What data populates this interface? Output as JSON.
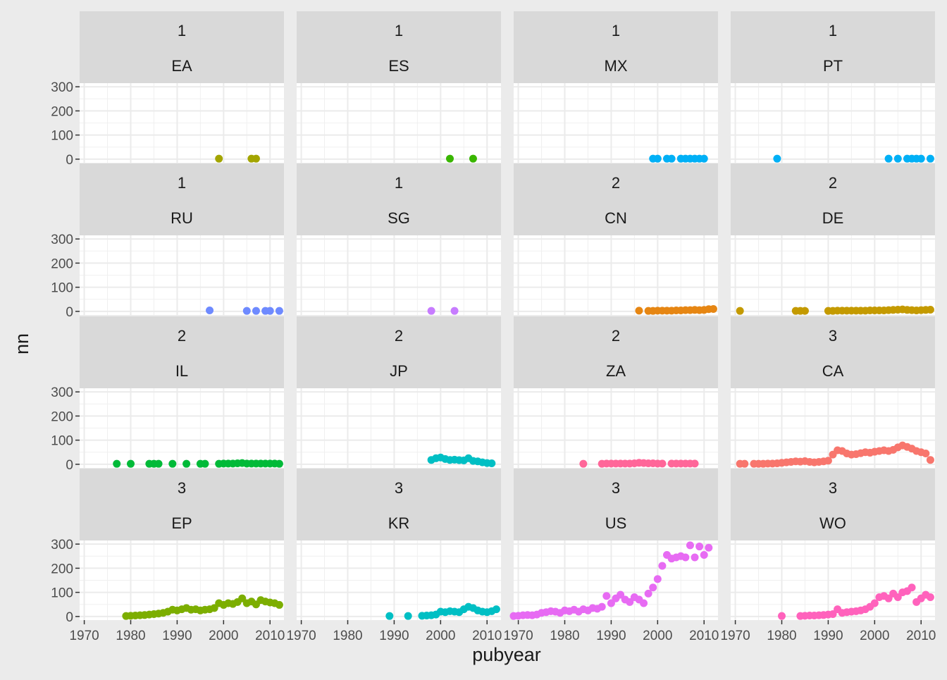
{
  "chart_data": {
    "type": "scatter",
    "xlabel": "pubyear",
    "ylabel": "nn",
    "xlim": [
      1969,
      2013
    ],
    "ylim": [
      -15,
      315
    ],
    "x_ticks": [
      1970,
      1980,
      1990,
      2000,
      2010
    ],
    "y_ticks": [
      0,
      100,
      200,
      300
    ],
    "grid": true,
    "legend": "none",
    "panels": [
      {
        "group": "1",
        "code": "EA",
        "color": "#A3A500",
        "points": [
          [
            1999,
            2
          ],
          [
            2006,
            2
          ],
          [
            2007,
            2
          ]
        ]
      },
      {
        "group": "1",
        "code": "ES",
        "color": "#39B600",
        "points": [
          [
            2002,
            2
          ],
          [
            2007,
            2
          ]
        ]
      },
      {
        "group": "1",
        "code": "MX",
        "color": "#00B0F6",
        "points": [
          [
            1999,
            2
          ],
          [
            2000,
            2
          ],
          [
            2002,
            2
          ],
          [
            2003,
            2
          ],
          [
            2005,
            2
          ],
          [
            2006,
            2
          ],
          [
            2007,
            2
          ],
          [
            2008,
            2
          ],
          [
            2009,
            2
          ],
          [
            2010,
            2
          ]
        ]
      },
      {
        "group": "1",
        "code": "PT",
        "color": "#00B0F6",
        "points": [
          [
            1979,
            2
          ],
          [
            2003,
            2
          ],
          [
            2005,
            2
          ],
          [
            2007,
            2
          ],
          [
            2008,
            2
          ],
          [
            2009,
            2
          ],
          [
            2010,
            2
          ],
          [
            2012,
            2
          ]
        ]
      },
      {
        "group": "1",
        "code": "RU",
        "color": "#6E8AFF",
        "points": [
          [
            1997,
            4
          ],
          [
            2005,
            2
          ],
          [
            2007,
            2
          ],
          [
            2009,
            2
          ],
          [
            2010,
            2
          ],
          [
            2012,
            2
          ]
        ]
      },
      {
        "group": "1",
        "code": "SG",
        "color": "#C77CFF",
        "points": [
          [
            1998,
            2
          ],
          [
            2003,
            2
          ]
        ]
      },
      {
        "group": "2",
        "code": "CN",
        "color": "#E68613",
        "points": [
          [
            1996,
            3
          ],
          [
            1998,
            2
          ],
          [
            1999,
            2
          ],
          [
            2000,
            3
          ],
          [
            2001,
            3
          ],
          [
            2002,
            3
          ],
          [
            2003,
            3
          ],
          [
            2004,
            4
          ],
          [
            2005,
            4
          ],
          [
            2006,
            5
          ],
          [
            2007,
            5
          ],
          [
            2008,
            6
          ],
          [
            2009,
            5
          ],
          [
            2010,
            6
          ],
          [
            2011,
            9
          ],
          [
            2012,
            10
          ]
        ]
      },
      {
        "group": "2",
        "code": "DE",
        "color": "#C49A00",
        "points": [
          [
            1971,
            2
          ],
          [
            1983,
            2
          ],
          [
            1984,
            2
          ],
          [
            1985,
            2
          ],
          [
            1990,
            2
          ],
          [
            1991,
            2
          ],
          [
            1992,
            3
          ],
          [
            1993,
            3
          ],
          [
            1994,
            3
          ],
          [
            1995,
            3
          ],
          [
            1996,
            3
          ],
          [
            1997,
            3
          ],
          [
            1998,
            3
          ],
          [
            1999,
            4
          ],
          [
            2000,
            4
          ],
          [
            2001,
            4
          ],
          [
            2002,
            4
          ],
          [
            2003,
            5
          ],
          [
            2004,
            6
          ],
          [
            2005,
            7
          ],
          [
            2006,
            8
          ],
          [
            2007,
            6
          ],
          [
            2008,
            5
          ],
          [
            2009,
            4
          ],
          [
            2010,
            5
          ],
          [
            2011,
            6
          ],
          [
            2012,
            7
          ]
        ]
      },
      {
        "group": "2",
        "code": "IL",
        "color": "#00BA38",
        "points": [
          [
            1977,
            2
          ],
          [
            1980,
            2
          ],
          [
            1984,
            2
          ],
          [
            1985,
            2
          ],
          [
            1986,
            2
          ],
          [
            1989,
            2
          ],
          [
            1992,
            2
          ],
          [
            1995,
            2
          ],
          [
            1996,
            2
          ],
          [
            1999,
            2
          ],
          [
            2000,
            3
          ],
          [
            2001,
            3
          ],
          [
            2002,
            3
          ],
          [
            2003,
            4
          ],
          [
            2004,
            5
          ],
          [
            2005,
            3
          ],
          [
            2006,
            3
          ],
          [
            2007,
            3
          ],
          [
            2008,
            3
          ],
          [
            2009,
            3
          ],
          [
            2010,
            3
          ],
          [
            2011,
            3
          ],
          [
            2012,
            2
          ]
        ]
      },
      {
        "group": "2",
        "code": "JP",
        "color": "#00BFC4",
        "points": [
          [
            1998,
            18
          ],
          [
            1999,
            25
          ],
          [
            2000,
            28
          ],
          [
            2001,
            22
          ],
          [
            2002,
            18
          ],
          [
            2003,
            19
          ],
          [
            2004,
            17
          ],
          [
            2005,
            16
          ],
          [
            2006,
            25
          ],
          [
            2007,
            14
          ],
          [
            2008,
            12
          ],
          [
            2009,
            8
          ],
          [
            2010,
            5
          ],
          [
            2011,
            4
          ]
        ]
      },
      {
        "group": "2",
        "code": "ZA",
        "color": "#FF6699",
        "points": [
          [
            1984,
            2
          ],
          [
            1988,
            2
          ],
          [
            1989,
            3
          ],
          [
            1990,
            3
          ],
          [
            1991,
            3
          ],
          [
            1992,
            3
          ],
          [
            1993,
            3
          ],
          [
            1994,
            3
          ],
          [
            1995,
            4
          ],
          [
            1996,
            6
          ],
          [
            1997,
            5
          ],
          [
            1998,
            4
          ],
          [
            1999,
            4
          ],
          [
            2000,
            3
          ],
          [
            2001,
            3
          ],
          [
            2003,
            3
          ],
          [
            2004,
            3
          ],
          [
            2005,
            3
          ],
          [
            2006,
            3
          ],
          [
            2007,
            3
          ],
          [
            2008,
            3
          ]
        ]
      },
      {
        "group": "3",
        "code": "CA",
        "color": "#F8766D",
        "points": [
          [
            1971,
            2
          ],
          [
            1972,
            2
          ],
          [
            1974,
            2
          ],
          [
            1975,
            2
          ],
          [
            1976,
            2
          ],
          [
            1977,
            3
          ],
          [
            1978,
            3
          ],
          [
            1979,
            4
          ],
          [
            1980,
            6
          ],
          [
            1981,
            8
          ],
          [
            1982,
            10
          ],
          [
            1983,
            12
          ],
          [
            1984,
            11
          ],
          [
            1985,
            13
          ],
          [
            1986,
            10
          ],
          [
            1987,
            8
          ],
          [
            1988,
            10
          ],
          [
            1989,
            12
          ],
          [
            1990,
            15
          ],
          [
            1991,
            40
          ],
          [
            1992,
            58
          ],
          [
            1993,
            55
          ],
          [
            1994,
            45
          ],
          [
            1995,
            40
          ],
          [
            1996,
            42
          ],
          [
            1997,
            46
          ],
          [
            1998,
            50
          ],
          [
            1999,
            48
          ],
          [
            2000,
            52
          ],
          [
            2001,
            55
          ],
          [
            2002,
            58
          ],
          [
            2003,
            55
          ],
          [
            2004,
            60
          ],
          [
            2005,
            70
          ],
          [
            2006,
            78
          ],
          [
            2007,
            72
          ],
          [
            2008,
            65
          ],
          [
            2009,
            55
          ],
          [
            2010,
            50
          ],
          [
            2011,
            45
          ],
          [
            2012,
            18
          ]
        ]
      },
      {
        "group": "3",
        "code": "EP",
        "color": "#7CAE00",
        "points": [
          [
            1979,
            2
          ],
          [
            1980,
            3
          ],
          [
            1981,
            4
          ],
          [
            1982,
            5
          ],
          [
            1983,
            6
          ],
          [
            1984,
            8
          ],
          [
            1985,
            10
          ],
          [
            1986,
            12
          ],
          [
            1987,
            15
          ],
          [
            1988,
            20
          ],
          [
            1989,
            28
          ],
          [
            1990,
            25
          ],
          [
            1991,
            30
          ],
          [
            1992,
            35
          ],
          [
            1993,
            28
          ],
          [
            1994,
            30
          ],
          [
            1995,
            25
          ],
          [
            1996,
            28
          ],
          [
            1997,
            30
          ],
          [
            1998,
            35
          ],
          [
            1999,
            55
          ],
          [
            2000,
            48
          ],
          [
            2001,
            55
          ],
          [
            2002,
            52
          ],
          [
            2003,
            60
          ],
          [
            2004,
            75
          ],
          [
            2005,
            55
          ],
          [
            2006,
            62
          ],
          [
            2007,
            50
          ],
          [
            2008,
            68
          ],
          [
            2009,
            62
          ],
          [
            2010,
            58
          ],
          [
            2011,
            55
          ],
          [
            2012,
            48
          ]
        ]
      },
      {
        "group": "3",
        "code": "KR",
        "color": "#00BFC4",
        "points": [
          [
            1989,
            2
          ],
          [
            1993,
            2
          ],
          [
            1996,
            3
          ],
          [
            1997,
            4
          ],
          [
            1998,
            5
          ],
          [
            1999,
            8
          ],
          [
            2000,
            20
          ],
          [
            2001,
            18
          ],
          [
            2002,
            22
          ],
          [
            2003,
            20
          ],
          [
            2004,
            18
          ],
          [
            2005,
            30
          ],
          [
            2006,
            40
          ],
          [
            2007,
            35
          ],
          [
            2008,
            25
          ],
          [
            2009,
            20
          ],
          [
            2010,
            18
          ],
          [
            2011,
            22
          ],
          [
            2012,
            30
          ]
        ]
      },
      {
        "group": "3",
        "code": "US",
        "color": "#E76BF3",
        "points": [
          [
            1969,
            2
          ],
          [
            1970,
            3
          ],
          [
            1971,
            5
          ],
          [
            1972,
            6
          ],
          [
            1973,
            5
          ],
          [
            1974,
            8
          ],
          [
            1975,
            15
          ],
          [
            1976,
            18
          ],
          [
            1977,
            22
          ],
          [
            1978,
            20
          ],
          [
            1979,
            15
          ],
          [
            1980,
            25
          ],
          [
            1981,
            22
          ],
          [
            1982,
            28
          ],
          [
            1983,
            20
          ],
          [
            1984,
            30
          ],
          [
            1985,
            25
          ],
          [
            1986,
            35
          ],
          [
            1987,
            32
          ],
          [
            1988,
            40
          ],
          [
            1989,
            85
          ],
          [
            1990,
            55
          ],
          [
            1991,
            75
          ],
          [
            1992,
            90
          ],
          [
            1993,
            70
          ],
          [
            1994,
            60
          ],
          [
            1995,
            80
          ],
          [
            1996,
            70
          ],
          [
            1997,
            55
          ],
          [
            1998,
            95
          ],
          [
            1999,
            120
          ],
          [
            2000,
            155
          ],
          [
            2001,
            210
          ],
          [
            2002,
            255
          ],
          [
            2003,
            240
          ],
          [
            2004,
            245
          ],
          [
            2005,
            250
          ],
          [
            2006,
            245
          ],
          [
            2007,
            295
          ],
          [
            2008,
            245
          ],
          [
            2009,
            290
          ],
          [
            2010,
            255
          ],
          [
            2011,
            285
          ]
        ]
      },
      {
        "group": "3",
        "code": "WO",
        "color": "#FF62BC",
        "points": [
          [
            1980,
            2
          ],
          [
            1984,
            2
          ],
          [
            1985,
            3
          ],
          [
            1986,
            4
          ],
          [
            1987,
            4
          ],
          [
            1988,
            5
          ],
          [
            1989,
            6
          ],
          [
            1990,
            8
          ],
          [
            1991,
            10
          ],
          [
            1992,
            30
          ],
          [
            1993,
            15
          ],
          [
            1994,
            18
          ],
          [
            1995,
            20
          ],
          [
            1996,
            22
          ],
          [
            1997,
            25
          ],
          [
            1998,
            30
          ],
          [
            1999,
            40
          ],
          [
            2000,
            55
          ],
          [
            2001,
            80
          ],
          [
            2002,
            85
          ],
          [
            2003,
            75
          ],
          [
            2004,
            95
          ],
          [
            2005,
            80
          ],
          [
            2006,
            100
          ],
          [
            2007,
            105
          ],
          [
            2008,
            120
          ],
          [
            2009,
            60
          ],
          [
            2010,
            75
          ],
          [
            2011,
            90
          ],
          [
            2012,
            80
          ]
        ]
      }
    ]
  }
}
